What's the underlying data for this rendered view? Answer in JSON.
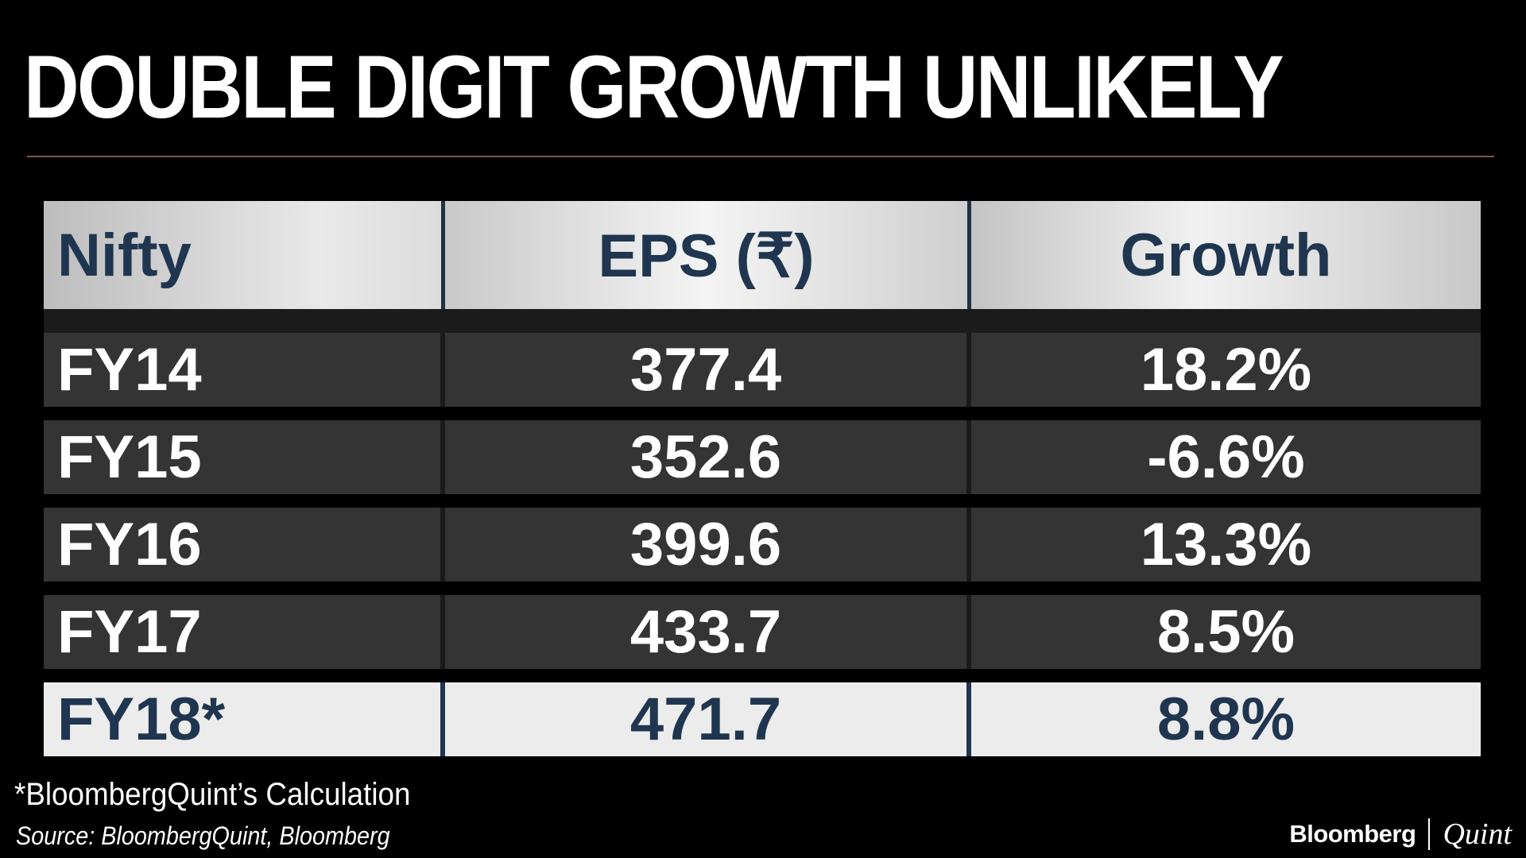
{
  "chart_data": {
    "type": "table",
    "title": "DOUBLE DIGIT GROWTH UNLIKELY",
    "columns": [
      "Nifty",
      "EPS (₹)",
      "Growth"
    ],
    "rows": [
      {
        "label": "FY14",
        "eps": "377.4",
        "growth": "18.2%"
      },
      {
        "label": "FY15",
        "eps": "352.6",
        "growth": "-6.6%"
      },
      {
        "label": "FY16",
        "eps": "399.6",
        "growth": "13.3%"
      },
      {
        "label": "FY17",
        "eps": "433.7",
        "growth": "8.5%"
      },
      {
        "label": "FY18*",
        "eps": "471.7",
        "growth": "8.8%"
      }
    ],
    "highlighted_row": "FY18*",
    "footnote": "*BloombergQuint’s Calculation",
    "source": "Source: BloombergQuint, Bloomberg"
  },
  "brand": {
    "primary": "Bloomberg",
    "secondary": "Quint"
  },
  "colors": {
    "background": "#000000",
    "header_text": "#1f3550",
    "row_background": "#343434",
    "highlight_background": "#ececec",
    "rule": "#7a5a3c"
  }
}
